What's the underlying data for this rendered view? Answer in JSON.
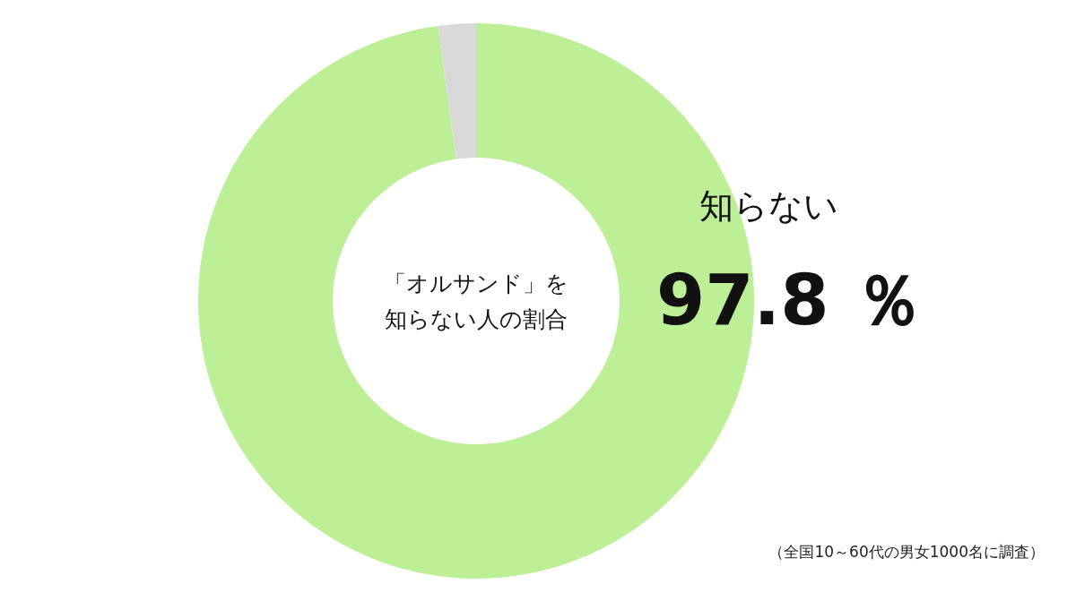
{
  "chart_data": {
    "type": "donut",
    "title": "「オルサンド」を知らない人の割合",
    "categories": [
      "知らない",
      null
    ],
    "values": [
      97.8,
      2.2
    ],
    "colors": [
      "#bdef96",
      "#d9d9d9"
    ],
    "value_labels": [
      "97.8 ％",
      null
    ],
    "annotations": [
      "（全国10～60代の男女1000名に調査）"
    ]
  }
}
